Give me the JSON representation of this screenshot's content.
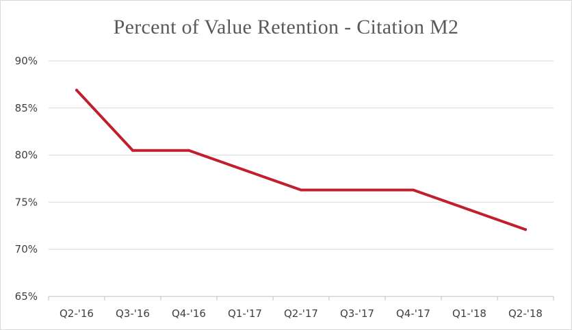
{
  "chart_data": {
    "type": "line",
    "title": "Percent of Value Retention - Citation M2",
    "xlabel": "",
    "ylabel": "",
    "categories": [
      "Q2-'16",
      "Q3-'16",
      "Q4-'16",
      "Q1-'17",
      "Q2-'17",
      "Q3-'17",
      "Q4-'17",
      "Q1-'18",
      "Q2-'18"
    ],
    "series": [
      {
        "values": [
          86.9,
          80.5,
          80.5,
          78.4,
          76.3,
          76.3,
          76.3,
          74.2,
          72.1
        ],
        "color": "#c0202e"
      }
    ],
    "ylim": [
      65,
      90
    ],
    "yticks": [
      {
        "value": 65,
        "label": "65%"
      },
      {
        "value": 70,
        "label": "70%"
      },
      {
        "value": 75,
        "label": "75%"
      },
      {
        "value": 80,
        "label": "80%"
      },
      {
        "value": 85,
        "label": "85%"
      },
      {
        "value": 90,
        "label": "90%"
      }
    ],
    "grid": true,
    "legend": "none"
  },
  "colors": {
    "line": "#c0202e",
    "grid": "#d9d9d9",
    "axis": "#bfbfbf",
    "text": "#404040",
    "title": "#595959"
  }
}
